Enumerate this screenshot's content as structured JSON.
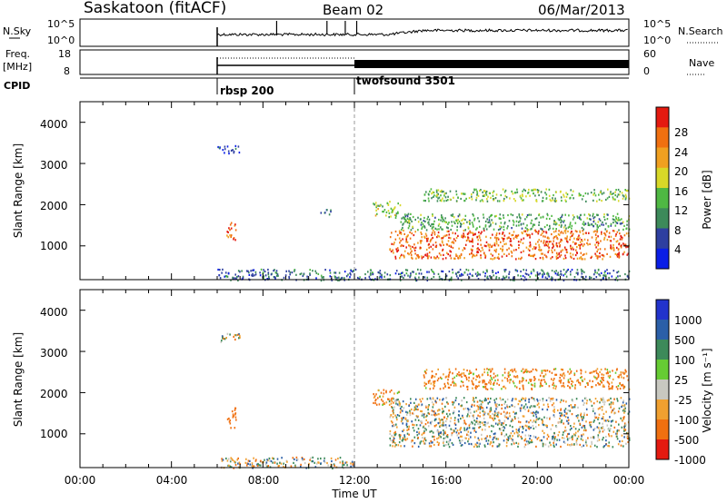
{
  "header": {
    "station": "Saskatoon (fitACF)",
    "beam": "Beam 02",
    "date": "06/Mar/2013"
  },
  "noise_panel": {
    "left_label": "N.Sky",
    "right_label": "N.Search",
    "y_ticks_left": [
      "10^5",
      "10^0"
    ],
    "y_ticks_right": [
      "10^5",
      "10^0"
    ]
  },
  "freq_panel": {
    "left_label_1": "Freq.",
    "left_label_2": "[MHz]",
    "right_label": "Nave",
    "left_ticks": [
      "18",
      "8"
    ],
    "right_ticks": [
      "60",
      "0"
    ]
  },
  "cpid_panel": {
    "label": "CPID",
    "modes": [
      {
        "name": "rbsp 200",
        "start_hour": 6.0
      },
      {
        "name": "twofsound 3501",
        "start_hour": 12.0
      }
    ]
  },
  "power_panel": {
    "ylabel": "Slant Range [km]",
    "yticks": [
      "1000",
      "2000",
      "3000",
      "4000"
    ],
    "colorbar_label": "Power [dB]",
    "colorbar_ticks": [
      "4",
      "8",
      "12",
      "16",
      "20",
      "24",
      "28"
    ],
    "colorbar_colors": [
      "#0a1ee6",
      "#2e3fa0",
      "#3d8a5a",
      "#4fb843",
      "#d8d828",
      "#f0a020",
      "#f07010",
      "#e41a10"
    ]
  },
  "velocity_panel": {
    "ylabel": "Slant Range [km]",
    "yticks": [
      "1000",
      "2000",
      "3000",
      "4000"
    ],
    "colorbar_label": "Velocity [m s⁻¹]",
    "colorbar_ticks": [
      "1000",
      "500",
      "100",
      "25",
      "-25",
      "-100",
      "-500",
      "-1000"
    ],
    "colorbar_colors": [
      "#2233cc",
      "#2b5fa8",
      "#3d8a5a",
      "#66cc33",
      "#c8c8c0",
      "#f0a030",
      "#f07010",
      "#e41a10"
    ]
  },
  "x_axis": {
    "label": "Time UT",
    "ticks": [
      "00:00",
      "04:00",
      "08:00",
      "12:00",
      "16:00",
      "20:00",
      "00:00"
    ]
  },
  "chart_data": [
    {
      "type": "heatmap",
      "title": "Power",
      "xlabel": "Time UT",
      "ylabel": "Slant Range [km]",
      "xlim_hours": [
        0,
        24
      ],
      "ylim_km": [
        180,
        4500
      ],
      "colorbar": {
        "label": "Power [dB]",
        "range": [
          0,
          32
        ],
        "ticks": [
          4,
          8,
          12,
          16,
          20,
          24,
          28
        ]
      },
      "scatter_regions": [
        {
          "t_start": 6.0,
          "t_end": 7.0,
          "r_start": 3250,
          "r_end": 3450,
          "mean_db": 6
        },
        {
          "t_start": 6.4,
          "t_end": 6.8,
          "r_start": 1150,
          "r_end": 1650,
          "mean_db": 26
        },
        {
          "t_start": 6.0,
          "t_end": 24.0,
          "r_start": 180,
          "r_end": 450,
          "mean_db": 8
        },
        {
          "t_start": 10.5,
          "t_end": 11.0,
          "r_start": 1750,
          "r_end": 1900,
          "mean_db": 8
        },
        {
          "t_start": 12.8,
          "t_end": 14.0,
          "r_start": 1700,
          "r_end": 2100,
          "mean_db": 16
        },
        {
          "t_start": 13.5,
          "t_end": 24.0,
          "r_start": 700,
          "r_end": 1400,
          "mean_db": 26
        },
        {
          "t_start": 14.0,
          "t_end": 24.0,
          "r_start": 1400,
          "r_end": 1800,
          "mean_db": 12
        },
        {
          "t_start": 15.0,
          "t_end": 24.0,
          "r_start": 2100,
          "r_end": 2400,
          "mean_db": 14
        }
      ]
    },
    {
      "type": "heatmap",
      "title": "Velocity",
      "xlabel": "Time UT",
      "ylabel": "Slant Range [km]",
      "xlim_hours": [
        0,
        24
      ],
      "ylim_km": [
        180,
        4500
      ],
      "colorbar": {
        "label": "Velocity [m s-1]",
        "ticks": [
          1000,
          500,
          100,
          25,
          -25,
          -100,
          -500,
          -1000
        ]
      },
      "scatter_regions": [
        {
          "t_start": 6.0,
          "t_end": 7.0,
          "r_start": 3250,
          "r_end": 3450,
          "mean_v": 0
        },
        {
          "t_start": 6.4,
          "t_end": 6.8,
          "r_start": 1150,
          "r_end": 1650,
          "mean_v": -300
        },
        {
          "t_start": 6.0,
          "t_end": 12.0,
          "r_start": 180,
          "r_end": 450,
          "mean_v": 0
        },
        {
          "t_start": 12.8,
          "t_end": 14.0,
          "r_start": 1700,
          "r_end": 2100,
          "mean_v": -150
        },
        {
          "t_start": 13.5,
          "t_end": 24.0,
          "r_start": 700,
          "r_end": 1900,
          "mean_v": 0
        },
        {
          "t_start": 15.0,
          "t_end": 24.0,
          "r_start": 2100,
          "r_end": 2600,
          "mean_v": -150
        }
      ]
    }
  ]
}
